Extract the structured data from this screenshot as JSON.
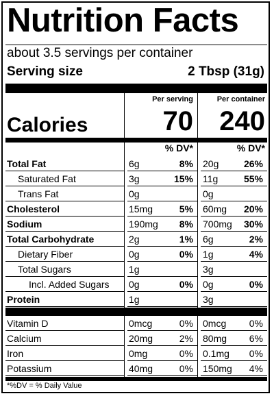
{
  "title": "Nutrition Facts",
  "servings_per_container": "about 3.5 servings per container",
  "serving_size": {
    "label": "Serving size",
    "value": "2 Tbsp (31g)"
  },
  "columns": {
    "per_serving": "Per serving",
    "per_container": "Per container"
  },
  "calories": {
    "label": "Calories",
    "per_serving": "70",
    "per_container": "240"
  },
  "dv_header": "% DV*",
  "nutrients": [
    {
      "name": "Total Fat",
      "bold": true,
      "indent": 0,
      "serving_amount": "6g",
      "serving_dv": "8%",
      "container_amount": "20g",
      "container_dv": "26%"
    },
    {
      "name": "Saturated Fat",
      "bold": false,
      "indent": 1,
      "serving_amount": "3g",
      "serving_dv": "15%",
      "container_amount": "11g",
      "container_dv": "55%"
    },
    {
      "name": "Trans Fat",
      "bold": false,
      "indent": 1,
      "serving_amount": "0g",
      "serving_dv": "",
      "container_amount": "0g",
      "container_dv": ""
    },
    {
      "name": "Cholesterol",
      "bold": true,
      "indent": 0,
      "serving_amount": "15mg",
      "serving_dv": "5%",
      "container_amount": "60mg",
      "container_dv": "20%"
    },
    {
      "name": "Sodium",
      "bold": true,
      "indent": 0,
      "serving_amount": "190mg",
      "serving_dv": "8%",
      "container_amount": "700mg",
      "container_dv": "30%"
    },
    {
      "name": "Total Carbohydrate",
      "bold": true,
      "indent": 0,
      "serving_amount": "2g",
      "serving_dv": "1%",
      "container_amount": "6g",
      "container_dv": "2%"
    },
    {
      "name": "Dietary Fiber",
      "bold": false,
      "indent": 1,
      "serving_amount": "0g",
      "serving_dv": "0%",
      "container_amount": "1g",
      "container_dv": "4%"
    },
    {
      "name": "Total Sugars",
      "bold": false,
      "indent": 1,
      "serving_amount": "1g",
      "serving_dv": "",
      "container_amount": "3g",
      "container_dv": ""
    },
    {
      "name": "Incl. Added Sugars",
      "bold": false,
      "indent": 2,
      "serving_amount": "0g",
      "serving_dv": "0%",
      "container_amount": "0g",
      "container_dv": "0%"
    },
    {
      "name": "Protein",
      "bold": true,
      "indent": 0,
      "serving_amount": "1g",
      "serving_dv": "",
      "container_amount": "3g",
      "container_dv": ""
    }
  ],
  "vitamins": [
    {
      "name": "Vitamin D",
      "serving_amount": "0mcg",
      "serving_dv": "0%",
      "container_amount": "0mcg",
      "container_dv": "0%"
    },
    {
      "name": "Calcium",
      "serving_amount": "20mg",
      "serving_dv": "2%",
      "container_amount": "80mg",
      "container_dv": "6%"
    },
    {
      "name": "Iron",
      "serving_amount": "0mg",
      "serving_dv": "0%",
      "container_amount": "0.1mg",
      "container_dv": "0%"
    },
    {
      "name": "Potassium",
      "serving_amount": "40mg",
      "serving_dv": "0%",
      "container_amount": "150mg",
      "container_dv": "4%"
    }
  ],
  "footnote": "*%DV = % Daily Value"
}
